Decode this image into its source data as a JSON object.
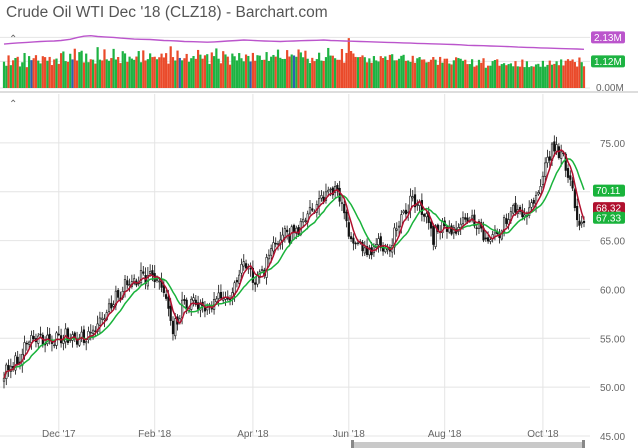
{
  "title": "Crude Oil WTI Dec '18 (CLZ18) - Barchart.com",
  "colors": {
    "candle": "#111111",
    "ma_short": "#b0102e",
    "ma_long": "#19b33b",
    "volume_up": "#1db342",
    "volume_down": "#ea4a2a",
    "volume_flat": "#2f5fb0",
    "open_interest": "#bb55cc",
    "grid": "#e4e4e4",
    "axis_text": "#666666"
  },
  "chart_data": [
    {
      "type": "bar",
      "panel": "volume",
      "y_ticks": [
        "2.13M",
        "1.12M",
        "0.00M"
      ],
      "y_tick_values": [
        2.13,
        1.12,
        0
      ],
      "ylim": [
        0,
        2.4
      ],
      "annotations": [
        {
          "label": "2.13M",
          "value": 2.13,
          "color": "#bb55cc"
        },
        {
          "label": "1.12M",
          "value": 1.12,
          "color": "#1db342"
        }
      ],
      "series": [
        {
          "name": "",
          "kind": "bars",
          "values": [
            1.2,
            1.1,
            1.25,
            1.0,
            1.35,
            1.15,
            1.3,
            1.05,
            1.2,
            1.4,
            0.9,
            1.25,
            1.3,
            1.1,
            1.45,
            1.2,
            1.0,
            1.3,
            1.5,
            1.15,
            1.25,
            1.05,
            1.35,
            1.2,
            1.1,
            1.4,
            1.6,
            1.25,
            1.0,
            1.3,
            1.2,
            1.45,
            1.1,
            1.35,
            1.55,
            1.2,
            1.3,
            1.0,
            1.4,
            1.25,
            1.15,
            1.5,
            1.3,
            1.2,
            1.6,
            1.35,
            1.1,
            1.25,
            1.45,
            1.3,
            1.2,
            1.05,
            1.4,
            1.55,
            1.25,
            1.35,
            1.15,
            1.3,
            1.2,
            1.45,
            1.1,
            1.6,
            1.3,
            1.25,
            1.4,
            1.2,
            1.5,
            1.35,
            1.15,
            1.3,
            1.25,
            1.4,
            1.2,
            1.55,
            1.3,
            1.1,
            1.45,
            1.25,
            1.35,
            1.2,
            1.5,
            1.3,
            1.15,
            1.4,
            1.25,
            1.6,
            1.35,
            1.2,
            1.3,
            1.45,
            1.1,
            1.4,
            1.25,
            1.55,
            1.3,
            1.2,
            1.35,
            1.5,
            1.25,
            1.15,
            1.4,
            1.3,
            1.2,
            1.45,
            1.35,
            1.25,
            1.6,
            1.3,
            1.2,
            1.4,
            1.25,
            1.5,
            1.35,
            1.15,
            1.3,
            1.45,
            1.2,
            1.3,
            1.4,
            1.25,
            1.55,
            1.35,
            1.2,
            1.3,
            1.45,
            1.25,
            1.4,
            1.3,
            1.2,
            1.5,
            1.35,
            1.25,
            1.4,
            1.3,
            1.15,
            1.45,
            1.3,
            1.25,
            1.4,
            1.35,
            1.2,
            1.3,
            1.5,
            1.25,
            1.4,
            1.3,
            1.2,
            1.35,
            1.45,
            1.25,
            1.3,
            1.2,
            1.4,
            1.3,
            1.25,
            1.35,
            1.2,
            1.3,
            1.4,
            1.25,
            1.3,
            1.2,
            1.35,
            1.3,
            1.25,
            1.4,
            1.3,
            1.2,
            1.25,
            1.35,
            1.3,
            1.2,
            1.25,
            1.3,
            1.2,
            1.25,
            1.3,
            1.2,
            1.15,
            1.25,
            1.2,
            1.3,
            1.15,
            1.2,
            1.25,
            1.1,
            1.2,
            1.15,
            1.25,
            1.2,
            1.1,
            1.15,
            1.2,
            1.1,
            1.15,
            1.2,
            1.1,
            1.05,
            1.15,
            1.1,
            1.2,
            1.05,
            1.1,
            1.15,
            1.05,
            1.1,
            1.0,
            1.1,
            1.05,
            1.15,
            1.1,
            1.0,
            1.05,
            1.1,
            1.0,
            1.05,
            1.1,
            1.0,
            0.95,
            1.05,
            1.0,
            1.1,
            0.95,
            1.0,
            1.05,
            0.95,
            1.0,
            1.05,
            0.95,
            1.0,
            0.95,
            1.05,
            1.0,
            1.1,
            0.95,
            1.0,
            1.05,
            1.0,
            0.95,
            1.05,
            1.0,
            1.1,
            1.05,
            1.0,
            1.1,
            1.05,
            1.0,
            1.15,
            1.1,
            1.05,
            1.1,
            1.0,
            1.15,
            1.1,
            1.05,
            1.12
          ],
          "colors_hint": "mixed green/red"
        }
      ],
      "open_interest": [
        1.85,
        1.88,
        1.9,
        1.92,
        1.94,
        1.96,
        1.97,
        1.98,
        2.0,
        2.05,
        2.12,
        2.18,
        2.2,
        2.17,
        2.15,
        2.13,
        2.1,
        2.08,
        2.06,
        2.05,
        2.04,
        2.02,
        2.0,
        1.99,
        1.98,
        1.96,
        1.95,
        1.94,
        1.93,
        1.94,
        1.96,
        1.98,
        2.0,
        2.02,
        2.01,
        1.99,
        1.98,
        1.97,
        1.96,
        1.97,
        1.98,
        1.99,
        2.0,
        2.01,
        2.02,
        2.0,
        1.99,
        1.98,
        1.97,
        1.96,
        1.95,
        1.94,
        1.93,
        1.92,
        1.91,
        1.9,
        1.89,
        1.88,
        1.87,
        1.86,
        1.85,
        1.84,
        1.83,
        1.82,
        1.8,
        1.79,
        1.78,
        1.77,
        1.76,
        1.75,
        1.74,
        1.72,
        1.71,
        1.7,
        1.69,
        1.68,
        1.67,
        1.66,
        1.65,
        1.64,
        1.63
      ]
    },
    {
      "type": "candlestick",
      "panel": "price",
      "x_ticks": [
        "Dec '17",
        "Feb '18",
        "Apr '18",
        "Jun '18",
        "Aug '18",
        "Oct '18"
      ],
      "x_tick_index": [
        24,
        66,
        109,
        151,
        193,
        236
      ],
      "n_bars": 255,
      "y_ticks": [
        75,
        70,
        65,
        60,
        55,
        50,
        45
      ],
      "y_tick_labels": [
        "75.00",
        "70.00",
        "65.00",
        "60.00",
        "55.00",
        "50.00",
        "45.00"
      ],
      "ylim": [
        45,
        80
      ],
      "grid": true,
      "close_anchors": [
        [
          0,
          51.2
        ],
        [
          6,
          52.8
        ],
        [
          12,
          55.0
        ],
        [
          18,
          54.6
        ],
        [
          24,
          55.0
        ],
        [
          30,
          55.2
        ],
        [
          36,
          54.9
        ],
        [
          42,
          56.8
        ],
        [
          48,
          58.6
        ],
        [
          54,
          60.6
        ],
        [
          60,
          61.4
        ],
        [
          66,
          61.2
        ],
        [
          70,
          59.8
        ],
        [
          74,
          55.6
        ],
        [
          78,
          58.2
        ],
        [
          82,
          58.9
        ],
        [
          86,
          58.1
        ],
        [
          90,
          58.3
        ],
        [
          94,
          59.3
        ],
        [
          98,
          59.0
        ],
        [
          102,
          61.0
        ],
        [
          106,
          62.8
        ],
        [
          110,
          60.6
        ],
        [
          114,
          62.2
        ],
        [
          118,
          64.5
        ],
        [
          122,
          65.2
        ],
        [
          126,
          65.8
        ],
        [
          130,
          66.2
        ],
        [
          134,
          68.2
        ],
        [
          138,
          69.4
        ],
        [
          142,
          70.0
        ],
        [
          146,
          70.2
        ],
        [
          149,
          68.0
        ],
        [
          152,
          65.0
        ],
        [
          156,
          64.5
        ],
        [
          160,
          63.8
        ],
        [
          164,
          64.8
        ],
        [
          168,
          63.9
        ],
        [
          172,
          66.2
        ],
        [
          176,
          68.2
        ],
        [
          180,
          69.3
        ],
        [
          184,
          67.8
        ],
        [
          188,
          65.4
        ],
        [
          192,
          66.6
        ],
        [
          196,
          66.0
        ],
        [
          200,
          66.8
        ],
        [
          204,
          67.2
        ],
        [
          208,
          66.6
        ],
        [
          212,
          64.6
        ],
        [
          216,
          66.0
        ],
        [
          220,
          66.7
        ],
        [
          224,
          68.5
        ],
        [
          228,
          67.5
        ],
        [
          232,
          68.8
        ],
        [
          236,
          71.5
        ],
        [
          240,
          74.5
        ],
        [
          244,
          74.0
        ],
        [
          248,
          70.8
        ],
        [
          252,
          66.5
        ],
        [
          254,
          67.3
        ]
      ],
      "series": [
        {
          "name": "",
          "style": "candles",
          "color": "#111111"
        },
        {
          "name": "",
          "style": "line",
          "role": "short moving average",
          "color": "#b0102e"
        },
        {
          "name": "",
          "style": "line",
          "role": "long moving average",
          "color": "#19b33b"
        }
      ],
      "annotations": [
        {
          "label": "70.11",
          "value": 70.11,
          "color": "#19b33b"
        },
        {
          "label": "68.32",
          "value": 68.32,
          "color": "#b0102e"
        },
        {
          "label": "67.33",
          "value": 67.33,
          "color": "#19b33b"
        }
      ]
    }
  ]
}
